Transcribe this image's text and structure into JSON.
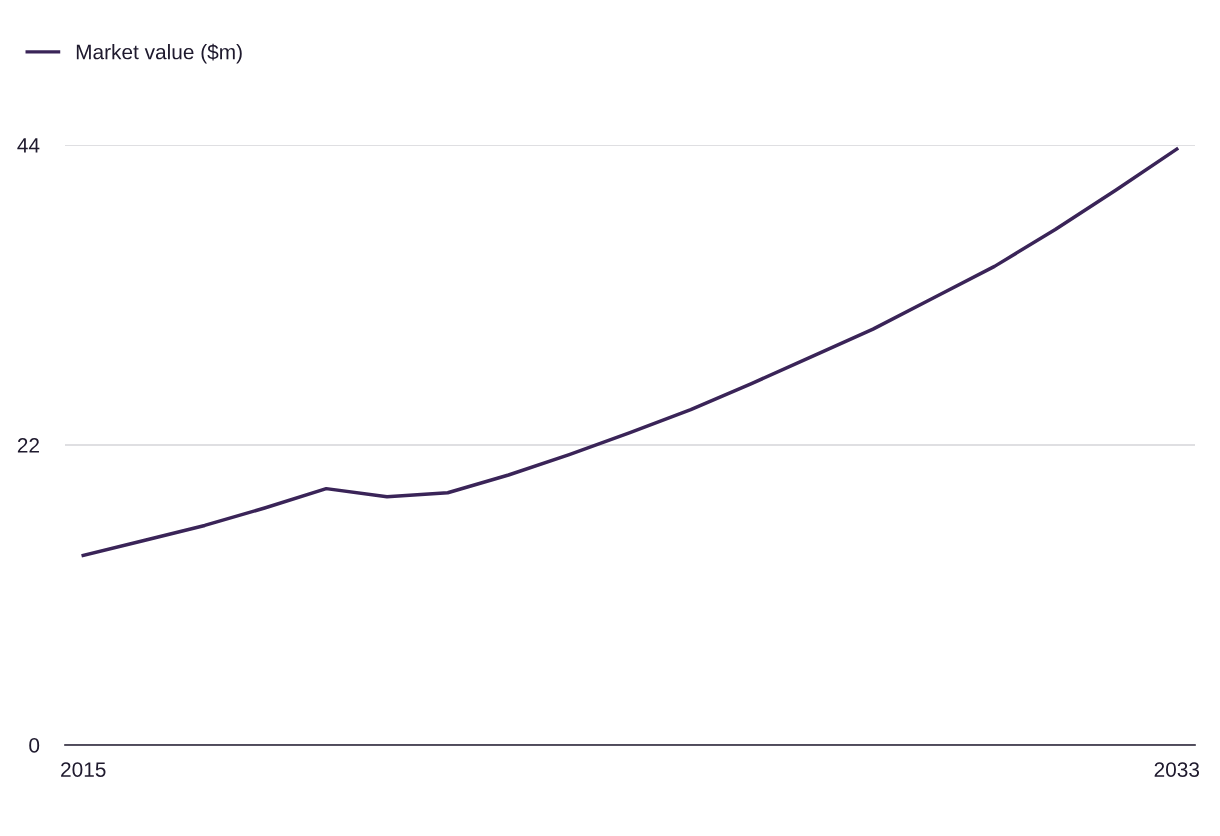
{
  "chart_data": {
    "type": "line",
    "x": [
      2015,
      2016,
      2017,
      2018,
      2019,
      2020,
      2021,
      2022,
      2023,
      2024,
      2025,
      2026,
      2027,
      2028,
      2029,
      2030,
      2031,
      2032,
      2033
    ],
    "series": [
      {
        "name": "Market value ($m)",
        "color": "#3a2458",
        "values": [
          13.9,
          15.0,
          16.1,
          17.4,
          18.8,
          18.2,
          18.5,
          19.8,
          21.3,
          22.9,
          24.6,
          26.5,
          28.5,
          30.5,
          32.8,
          35.1,
          37.8,
          40.7,
          43.7
        ]
      }
    ],
    "xlim": [
      2014.7,
      2033.3
    ],
    "xticks": [
      2015,
      2033
    ],
    "ylim": [
      0,
      44
    ],
    "yticks": [
      0,
      22,
      44
    ],
    "grid": "y",
    "legend": "top left",
    "marker": "none",
    "line_style": "solid"
  }
}
